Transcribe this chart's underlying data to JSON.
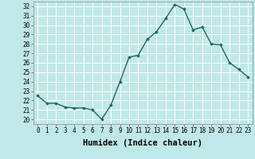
{
  "x": [
    0,
    1,
    2,
    3,
    4,
    5,
    6,
    7,
    8,
    9,
    10,
    11,
    12,
    13,
    14,
    15,
    16,
    17,
    18,
    19,
    20,
    21,
    22,
    23
  ],
  "y": [
    22.5,
    21.7,
    21.7,
    21.3,
    21.2,
    21.2,
    21.0,
    20.0,
    21.5,
    24.0,
    26.6,
    26.8,
    28.5,
    29.3,
    30.7,
    32.2,
    31.7,
    29.5,
    29.8,
    28.0,
    27.9,
    26.0,
    25.3,
    24.5
  ],
  "line_color": "#1a6b5a",
  "marker": "D",
  "marker_size": 1.8,
  "bg_color": "#c0e8e8",
  "grid_color": "#ffffff",
  "xlabel": "Humidex (Indice chaleur)",
  "ylabel": "",
  "xlim": [
    -0.5,
    23.5
  ],
  "ylim": [
    19.5,
    32.5
  ],
  "yticks": [
    20,
    21,
    22,
    23,
    24,
    25,
    26,
    27,
    28,
    29,
    30,
    31,
    32
  ],
  "xticks": [
    0,
    1,
    2,
    3,
    4,
    5,
    6,
    7,
    8,
    9,
    10,
    11,
    12,
    13,
    14,
    15,
    16,
    17,
    18,
    19,
    20,
    21,
    22,
    23
  ],
  "tick_fontsize": 5.5,
  "xlabel_fontsize": 7.5,
  "line_width": 1.0
}
